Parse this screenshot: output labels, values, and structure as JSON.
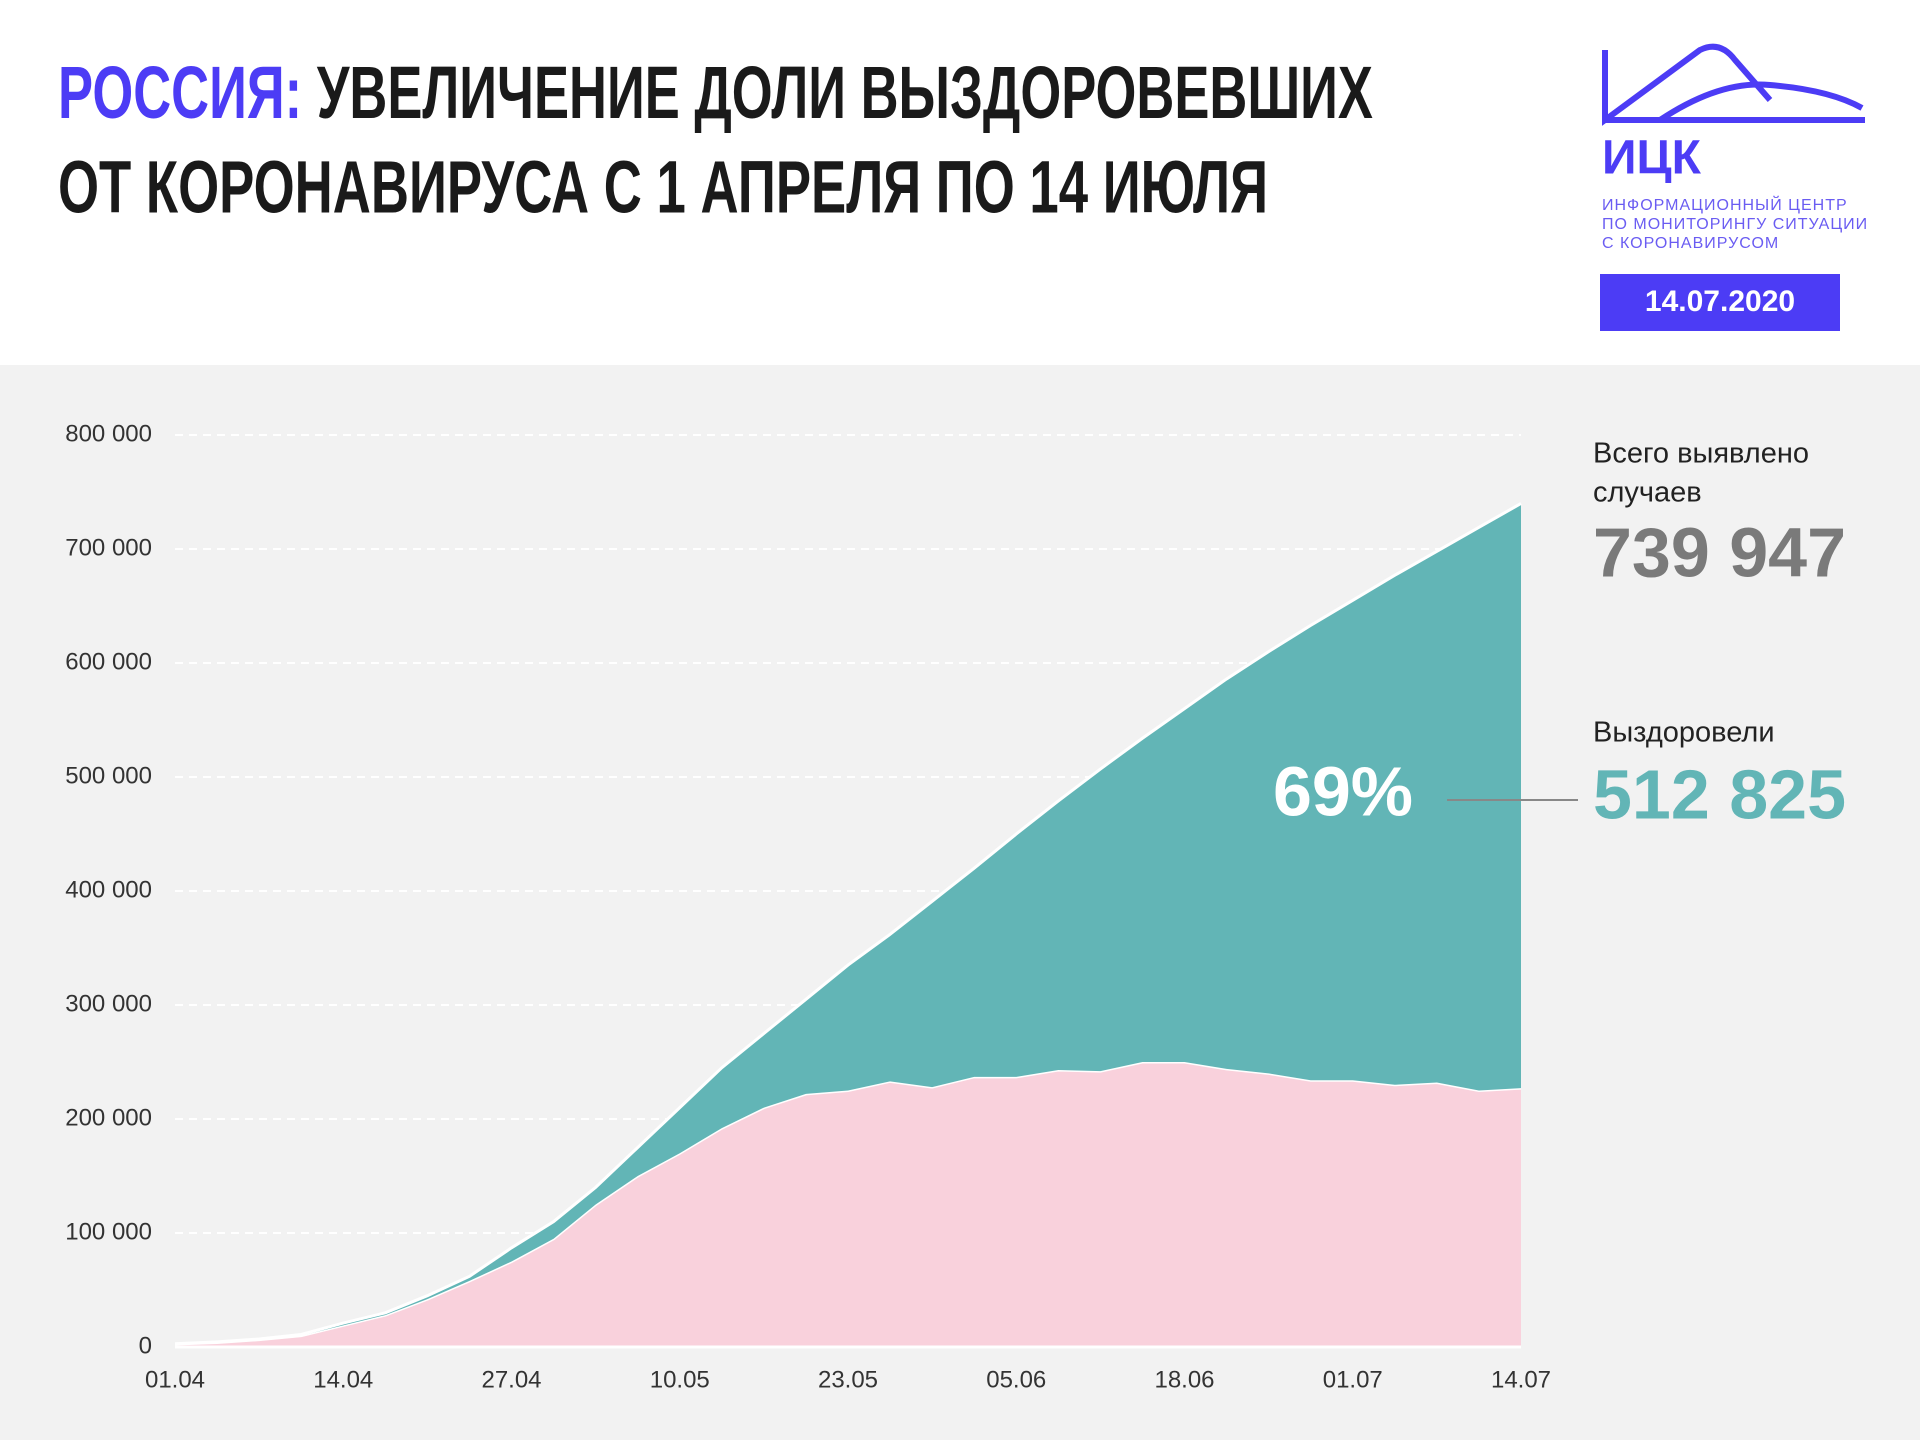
{
  "header": {
    "title_accent": "РОССИЯ:",
    "title_line1": "УВЕЛИЧЕНИЕ ДОЛИ ВЫЗДОРОВЕВШИХ",
    "title_line2": "ОТ КОРОНАВИРУСА С 1 АПРЕЛЯ ПО 14 ИЮЛЯ",
    "logo": "ИЦК",
    "logo_lines": [
      "ИНФОРМАЦИОННЫЙ ЦЕНТР",
      "ПО МОНИТОРИНГУ СИТУАЦИИ",
      "С КОРОНАВИРУСОМ"
    ],
    "date": "14.07.2020"
  },
  "chart_data": {
    "type": "stacked_area",
    "categories": [
      "01.04",
      null,
      null,
      null,
      "14.04",
      null,
      null,
      null,
      "27.04",
      null,
      null,
      null,
      "10.05",
      null,
      null,
      null,
      "23.05",
      null,
      null,
      null,
      "05.06",
      null,
      null,
      null,
      "18.06",
      null,
      null,
      null,
      "01.07",
      null,
      null,
      null,
      "14.07"
    ],
    "series": [
      {
        "color": "#f9d1dc",
        "values": [
          2600,
          4000,
          6500,
          10000,
          19000,
          28000,
          42000,
          58000,
          75000,
          95000,
          125000,
          150000,
          170000,
          192000,
          210000,
          222000,
          225000,
          233000,
          228000,
          237000,
          237000,
          243000,
          242000,
          250000,
          250000,
          244000,
          240000,
          234000,
          234000,
          230000,
          232000,
          225000,
          227122
        ]
      },
      {
        "name": "Выздоровели",
        "color": "#62b5b6",
        "values": [
          200,
          500,
          500,
          1000,
          2000,
          2000,
          3000,
          4000,
          12000,
          15000,
          15000,
          25000,
          40000,
          53000,
          65000,
          83000,
          110000,
          129000,
          163000,
          183000,
          213000,
          236000,
          265000,
          284000,
          310000,
          342000,
          370000,
          399000,
          421000,
          447000,
          466000,
          494000,
          512825
        ],
        "value_labels_last": "512 825"
      }
    ],
    "ylim": [
      0,
      800000
    ],
    "yticks": [
      0,
      {
        "value": 100000,
        "label": "100 000"
      },
      {
        "value": 200000,
        "label": "200 000"
      },
      {
        "value": 300000,
        "label": "300 000"
      },
      {
        "value": 400000,
        "label": "400 000"
      },
      {
        "value": 500000,
        "label": "500 000"
      },
      {
        "value": 600000,
        "label": "600 000"
      },
      {
        "value": 700000,
        "label": "700 000"
      },
      {
        "value": 800000,
        "label": "800 000"
      }
    ],
    "grid": true,
    "annotations": {
      "share": "69%",
      "total_label_1": "Всего выявлено",
      "total_label_2": "случаев",
      "total": "739 947"
    }
  }
}
